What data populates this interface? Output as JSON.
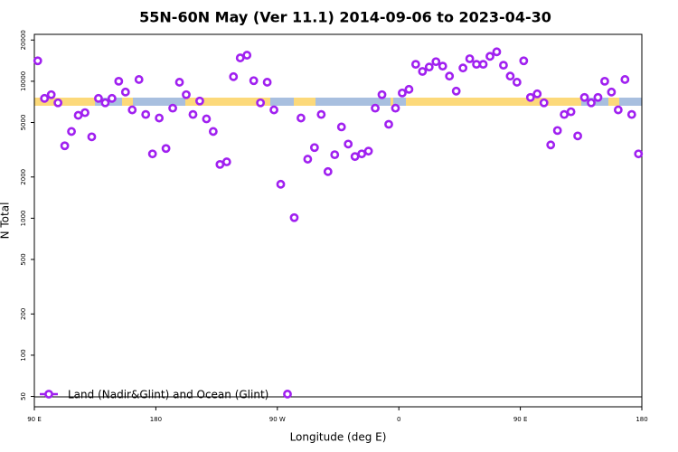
{
  "chart_data": {
    "type": "scatter",
    "title": "55N-60N May (Ver 11.1)   2014-09-06 to 2023-04-30",
    "xlabel": "Longitude (deg E)",
    "ylabel": "N Total",
    "log_scale": true,
    "legend": "bottom-left",
    "xlim": [
      90,
      540
    ],
    "xticks": [
      {
        "value": 90,
        "label": "90 E"
      },
      180,
      {
        "value": 270,
        "label": "90 W"
      },
      {
        "value": 360,
        "label": "0"
      },
      {
        "value": 450,
        "label": "90 E"
      },
      {
        "value": 540,
        "label": "180"
      }
    ],
    "ylim": [
      42,
      22000
    ],
    "yticks": [
      50,
      100,
      200,
      500,
      1000,
      2000,
      5000,
      10000,
      20000
    ],
    "x": [
      92.5,
      97.5,
      102.5,
      107.5,
      112.5,
      117.5,
      122.5,
      127.5,
      132.5,
      137.5,
      142.5,
      147.5,
      152.5,
      157.5,
      162.5,
      167.5,
      172.5,
      177.5,
      182.5,
      187.5,
      192.5,
      197.5,
      202.5,
      207.5,
      212.5,
      217.5,
      222.5,
      227.5,
      232.5,
      237.5,
      242.5,
      247.5,
      252.5,
      257.5,
      262.5,
      267.5,
      272.5,
      277.5,
      282.5,
      287.5,
      292.5,
      297.5,
      302.5,
      307.5,
      312.5,
      317.5,
      322.5,
      327.5,
      332.5,
      337.5,
      342.5,
      347.5,
      352.5,
      357.5,
      362.5,
      367.5,
      372.5,
      377.5,
      382.5,
      387.5,
      392.5,
      397.5,
      402.5,
      407.5,
      412.5,
      417.5,
      422.5,
      427.5,
      432.5,
      437.5,
      442.5,
      447.5,
      452.5,
      457.5,
      462.5,
      467.5,
      472.5,
      477.5,
      482.5,
      487.5,
      492.5,
      497.5,
      502.5,
      507.5,
      512.5,
      517.5,
      522.5,
      527.5,
      532.5,
      537.5
    ],
    "series": [
      {
        "name": "Land (Nadir&Glint) and Ocean (Glint)",
        "color": "#a020f0",
        "values": [
          14100,
          7500,
          7980,
          6960,
          3380,
          4300,
          5640,
          5900,
          3930,
          7500,
          6960,
          7500,
          10000,
          8340,
          6180,
          10300,
          5720,
          2950,
          5390,
          3230,
          6360,
          9840,
          7980,
          5720,
          7170,
          5310,
          4300,
          2470,
          2580,
          10800,
          14800,
          15500,
          10100,
          6960,
          9840,
          6180,
          1770,
          52,
          1010,
          5390,
          2700,
          3280,
          5720,
          2190,
          2910,
          4640,
          3480,
          2820,
          2950,
          3090,
          6360,
          7980,
          4850,
          6360,
          8210,
          8730,
          13300,
          11800,
          12700,
          13900,
          12900,
          10900,
          8470,
          12500,
          14600,
          13300,
          13300,
          15200,
          16400,
          13100,
          10900,
          9840,
          14100,
          7620,
          8090,
          6960,
          3430,
          4370,
          5720,
          5990,
          3990,
          7620,
          6960,
          7620,
          10000,
          8340,
          6180,
          10300,
          5720,
          2950
        ]
      }
    ]
  }
}
